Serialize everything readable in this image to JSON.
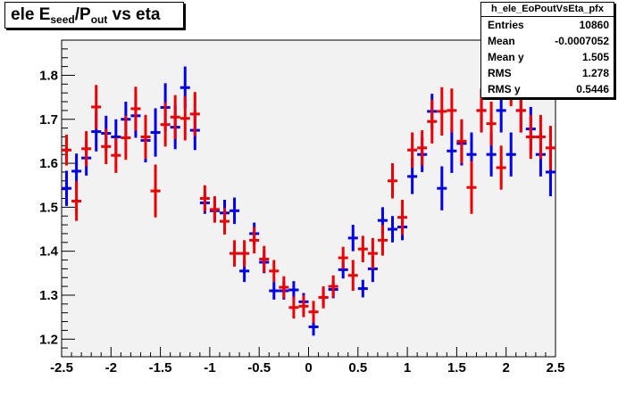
{
  "title": {
    "main": "ele E",
    "sub1": "seed",
    "mid": "/P",
    "sub2": "out",
    "tail": " vs eta"
  },
  "stats": {
    "name": "h_ele_EoPoutVsEta_pfx",
    "rows": [
      {
        "label": "Entries",
        "value": "10860"
      },
      {
        "label": "Mean",
        "value": "-0.0007052"
      },
      {
        "label": "Mean y",
        "value": "1.505"
      },
      {
        "label": "RMS",
        "value": "1.278"
      },
      {
        "label": "RMS y",
        "value": "0.5446"
      }
    ]
  },
  "colors": {
    "frame_bg": "#f2f2f2",
    "blue": "#0000ee",
    "red": "#ee0000"
  },
  "chart_data": {
    "type": "scatter",
    "style": "profile with error bars",
    "title": "ele E_seed/P_out vs eta",
    "xlim": [
      -2.5,
      2.5
    ],
    "ylim": [
      1.16,
      1.88
    ],
    "x_ticks": [
      "-2.5",
      "-2",
      "-1.5",
      "-1",
      "-0.5",
      "0",
      "0.5",
      "1",
      "1.5",
      "2",
      "2.5"
    ],
    "y_ticks": [
      "1.2",
      "1.3",
      "1.4",
      "1.5",
      "1.6",
      "1.7",
      "1.8"
    ],
    "bin_halfwidth": 0.05,
    "grid": false,
    "series": [
      {
        "color": "blue",
        "points": [
          [
            -2.45,
            1.543,
            0.04
          ],
          [
            -2.35,
            1.582,
            0.04
          ],
          [
            -2.25,
            1.612,
            0.04
          ],
          [
            -2.15,
            1.672,
            0.045
          ],
          [
            -2.05,
            1.668,
            0.04
          ],
          [
            -1.95,
            1.66,
            0.04
          ],
          [
            -1.85,
            1.7,
            0.04
          ],
          [
            -1.75,
            1.708,
            0.05
          ],
          [
            -1.65,
            1.652,
            0.05
          ],
          [
            -1.55,
            1.67,
            0.055
          ],
          [
            -1.45,
            1.727,
            0.055
          ],
          [
            -1.35,
            1.682,
            0.05
          ],
          [
            -1.25,
            1.772,
            0.048
          ],
          [
            -1.15,
            1.675,
            0.045
          ],
          [
            -1.05,
            1.51,
            0.025
          ],
          [
            -0.95,
            1.492,
            0.025
          ],
          [
            -0.85,
            1.487,
            0.03
          ],
          [
            -0.75,
            1.492,
            0.03
          ],
          [
            -0.65,
            1.355,
            0.025
          ],
          [
            -0.55,
            1.44,
            0.025
          ],
          [
            -0.45,
            1.375,
            0.025
          ],
          [
            -0.35,
            1.31,
            0.02
          ],
          [
            -0.25,
            1.31,
            0.02
          ],
          [
            -0.15,
            1.312,
            0.02
          ],
          [
            -0.05,
            1.285,
            0.02
          ],
          [
            0.05,
            1.228,
            0.02
          ],
          [
            0.15,
            1.295,
            0.02
          ],
          [
            0.25,
            1.313,
            0.02
          ],
          [
            0.35,
            1.358,
            0.02
          ],
          [
            0.45,
            1.43,
            0.03
          ],
          [
            0.55,
            1.315,
            0.02
          ],
          [
            0.65,
            1.36,
            0.03
          ],
          [
            0.75,
            1.47,
            0.03
          ],
          [
            0.85,
            1.45,
            0.03
          ],
          [
            0.95,
            1.455,
            0.03
          ],
          [
            1.05,
            1.57,
            0.04
          ],
          [
            1.15,
            1.62,
            0.04
          ],
          [
            1.25,
            1.718,
            0.04
          ],
          [
            1.35,
            1.543,
            0.05
          ],
          [
            1.45,
            1.628,
            0.05
          ],
          [
            1.55,
            1.645,
            0.05
          ],
          [
            1.65,
            1.62,
            0.05
          ],
          [
            1.75,
            1.72,
            0.05
          ],
          [
            1.85,
            1.62,
            0.05
          ],
          [
            1.95,
            1.72,
            0.05
          ],
          [
            2.05,
            1.62,
            0.05
          ],
          [
            2.15,
            1.72,
            0.05
          ],
          [
            2.25,
            1.678,
            0.05
          ],
          [
            2.35,
            1.62,
            0.05
          ],
          [
            2.45,
            1.58,
            0.055
          ]
        ]
      },
      {
        "color": "red",
        "points": [
          [
            -2.45,
            1.63,
            0.035
          ],
          [
            -2.35,
            1.514,
            0.045
          ],
          [
            -2.25,
            1.633,
            0.04
          ],
          [
            -2.15,
            1.728,
            0.05
          ],
          [
            -2.05,
            1.638,
            0.04
          ],
          [
            -1.95,
            1.618,
            0.04
          ],
          [
            -1.85,
            1.658,
            0.05
          ],
          [
            -1.75,
            1.724,
            0.05
          ],
          [
            -1.65,
            1.66,
            0.05
          ],
          [
            -1.55,
            1.537,
            0.06
          ],
          [
            -1.45,
            1.688,
            0.05
          ],
          [
            -1.35,
            1.705,
            0.05
          ],
          [
            -1.25,
            1.702,
            0.05
          ],
          [
            -1.15,
            1.712,
            0.05
          ],
          [
            -1.05,
            1.52,
            0.03
          ],
          [
            -0.95,
            1.495,
            0.03
          ],
          [
            -0.85,
            1.468,
            0.03
          ],
          [
            -0.75,
            1.395,
            0.03
          ],
          [
            -0.65,
            1.395,
            0.03
          ],
          [
            -0.55,
            1.425,
            0.03
          ],
          [
            -0.45,
            1.382,
            0.03
          ],
          [
            -0.35,
            1.355,
            0.025
          ],
          [
            -0.25,
            1.318,
            0.025
          ],
          [
            -0.15,
            1.272,
            0.025
          ],
          [
            -0.05,
            1.275,
            0.025
          ],
          [
            0.05,
            1.262,
            0.025
          ],
          [
            0.15,
            1.295,
            0.025
          ],
          [
            0.25,
            1.32,
            0.025
          ],
          [
            0.35,
            1.385,
            0.025
          ],
          [
            0.45,
            1.345,
            0.035
          ],
          [
            0.55,
            1.405,
            0.03
          ],
          [
            0.65,
            1.395,
            0.035
          ],
          [
            0.75,
            1.425,
            0.035
          ],
          [
            0.85,
            1.56,
            0.04
          ],
          [
            0.95,
            1.477,
            0.04
          ],
          [
            1.05,
            1.63,
            0.04
          ],
          [
            1.15,
            1.635,
            0.04
          ],
          [
            1.25,
            1.695,
            0.05
          ],
          [
            1.35,
            1.718,
            0.055
          ],
          [
            1.45,
            1.72,
            0.05
          ],
          [
            1.55,
            1.65,
            0.05
          ],
          [
            1.65,
            1.545,
            0.06
          ],
          [
            1.75,
            1.72,
            0.05
          ],
          [
            1.85,
            1.69,
            0.05
          ],
          [
            1.95,
            1.59,
            0.05
          ],
          [
            2.05,
            1.79,
            0.06
          ],
          [
            2.15,
            1.72,
            0.05
          ],
          [
            2.25,
            1.66,
            0.05
          ],
          [
            2.35,
            1.66,
            0.05
          ],
          [
            2.45,
            1.635,
            0.05
          ]
        ]
      }
    ]
  }
}
